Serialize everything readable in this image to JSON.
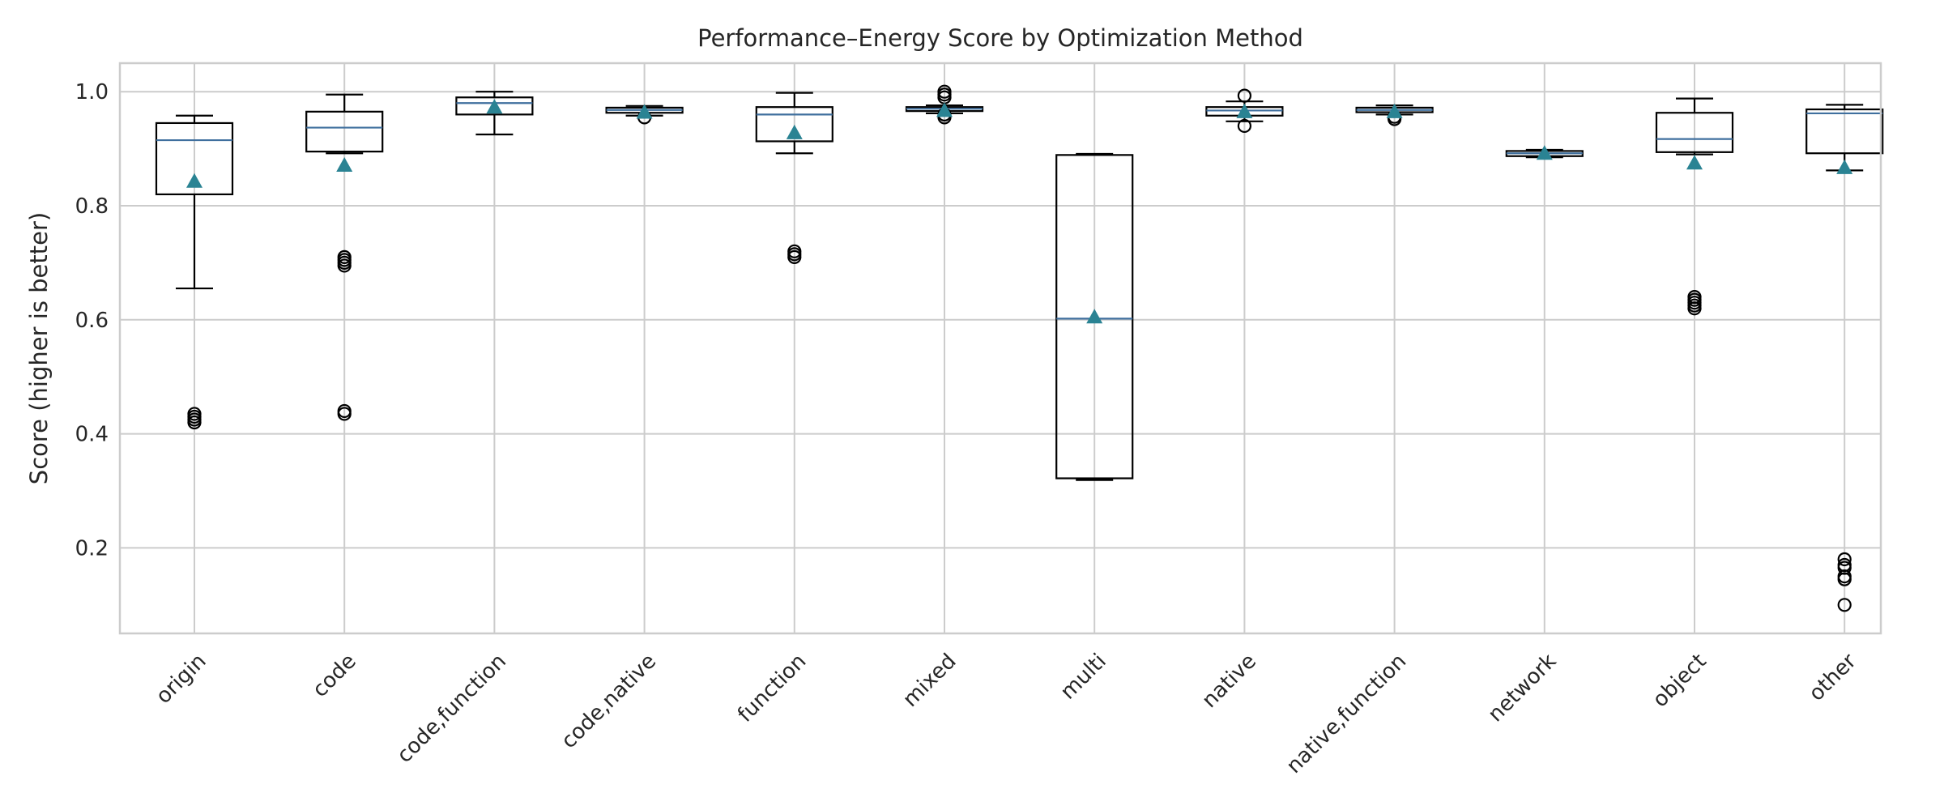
{
  "chart_data": {
    "type": "box",
    "title": "Performance–Energy Score by Optimization Method",
    "xlabel": "",
    "ylabel": "Score (higher is better)",
    "ylim": [
      0.05,
      1.05
    ],
    "yticks": [
      0.2,
      0.4,
      0.6,
      0.8,
      1.0
    ],
    "ytick_labels": [
      "0.2",
      "0.4",
      "0.6",
      "0.8",
      "1.0"
    ],
    "grid": true,
    "show_means": true,
    "colors": {
      "box": "#000000",
      "median": "#3f6f9e",
      "mean": "#2a8393",
      "grid": "#cccccc"
    },
    "categories": [
      "origin",
      "code",
      "code,function",
      "code,native",
      "function",
      "mixed",
      "multi",
      "native",
      "native,function",
      "network",
      "object",
      "other"
    ],
    "boxes": [
      {
        "label": "origin",
        "whisker_low": 0.655,
        "q1": 0.82,
        "median": 0.915,
        "q3": 0.945,
        "whisker_high": 0.958,
        "mean": 0.843,
        "outliers": [
          0.42,
          0.425,
          0.43,
          0.435
        ]
      },
      {
        "label": "code",
        "whisker_low": 0.892,
        "q1": 0.895,
        "median": 0.937,
        "q3": 0.965,
        "whisker_high": 0.995,
        "mean": 0.871,
        "outliers": [
          0.435,
          0.44,
          0.695,
          0.7,
          0.705,
          0.71
        ]
      },
      {
        "label": "code,function",
        "whisker_low": 0.925,
        "q1": 0.96,
        "median": 0.98,
        "q3": 0.99,
        "whisker_high": 1.0,
        "mean": 0.973,
        "outliers": []
      },
      {
        "label": "code,native",
        "whisker_low": 0.958,
        "q1": 0.963,
        "median": 0.968,
        "q3": 0.972,
        "whisker_high": 0.975,
        "mean": 0.964,
        "outliers": [
          0.955
        ]
      },
      {
        "label": "function",
        "whisker_low": 0.892,
        "q1": 0.913,
        "median": 0.96,
        "q3": 0.973,
        "whisker_high": 0.998,
        "mean": 0.928,
        "outliers": [
          0.71,
          0.715,
          0.72
        ]
      },
      {
        "label": "mixed",
        "whisker_low": 0.962,
        "q1": 0.966,
        "median": 0.97,
        "q3": 0.973,
        "whisker_high": 0.976,
        "mean": 0.967,
        "outliers": [
          0.955,
          0.96,
          0.99,
          0.995,
          1.0
        ]
      },
      {
        "label": "multi",
        "whisker_low": 0.319,
        "q1": 0.322,
        "median": 0.602,
        "q3": 0.889,
        "whisker_high": 0.891,
        "mean": 0.605,
        "outliers": []
      },
      {
        "label": "native",
        "whisker_low": 0.948,
        "q1": 0.958,
        "median": 0.967,
        "q3": 0.973,
        "whisker_high": 0.983,
        "mean": 0.965,
        "outliers": [
          0.94,
          0.993
        ]
      },
      {
        "label": "native,function",
        "whisker_low": 0.96,
        "q1": 0.964,
        "median": 0.968,
        "q3": 0.972,
        "whisker_high": 0.976,
        "mean": 0.965,
        "outliers": [
          0.952,
          0.956
        ]
      },
      {
        "label": "network",
        "whisker_low": 0.885,
        "q1": 0.887,
        "median": 0.892,
        "q3": 0.896,
        "whisker_high": 0.898,
        "mean": 0.892,
        "outliers": []
      },
      {
        "label": "object",
        "whisker_low": 0.89,
        "q1": 0.894,
        "median": 0.917,
        "q3": 0.963,
        "whisker_high": 0.988,
        "mean": 0.875,
        "outliers": [
          0.62,
          0.625,
          0.63,
          0.635,
          0.64
        ]
      },
      {
        "label": "other",
        "whisker_low": 0.862,
        "q1": 0.892,
        "median": 0.962,
        "q3": 0.969,
        "whisker_high": 0.977,
        "mean": 0.867,
        "outliers": [
          0.1,
          0.145,
          0.15,
          0.165,
          0.17,
          0.18
        ]
      }
    ]
  }
}
